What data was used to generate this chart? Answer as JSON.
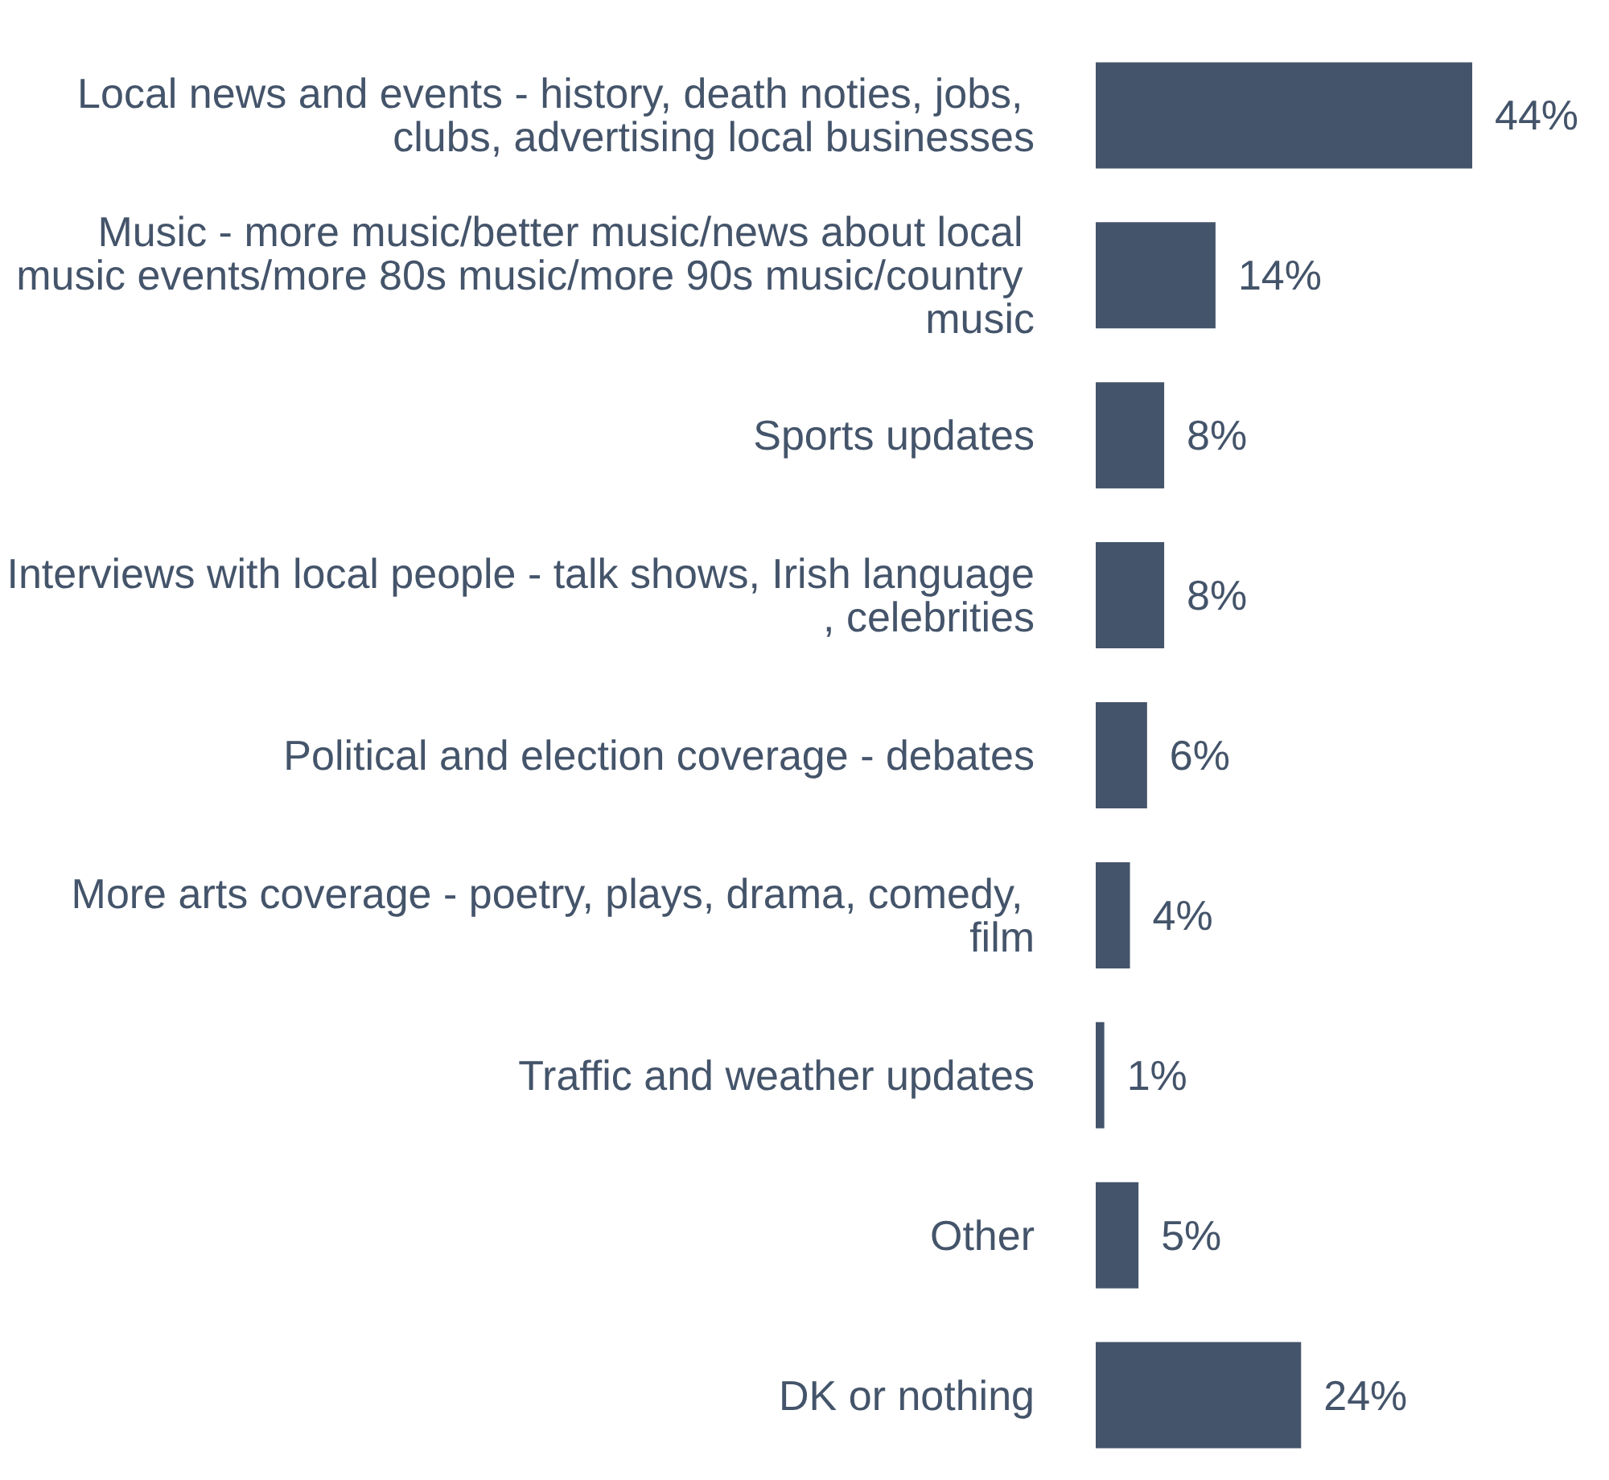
{
  "chart_data": {
    "type": "bar",
    "orientation": "horizontal",
    "color": "#44546a",
    "categories": [
      "Local news and events - history, death noties, jobs, clubs, advertising local businesses",
      "Music - more music/better music/news about local music events/more 80s music/more 90s music/country music",
      "Sports updates",
      "Interviews with local people - talk shows, Irish language, celebrities",
      "Political and election coverage - debates",
      "More arts coverage - poetry, plays, drama, comedy, film",
      "Traffic and weather updates",
      "Other",
      "DK or nothing"
    ],
    "values": [
      44,
      14,
      8,
      8,
      6,
      4,
      1,
      5,
      24
    ],
    "value_labels": [
      "44%",
      "14%",
      "8%",
      "8%",
      "6%",
      "4%",
      "1%",
      "5%",
      "24%"
    ]
  }
}
